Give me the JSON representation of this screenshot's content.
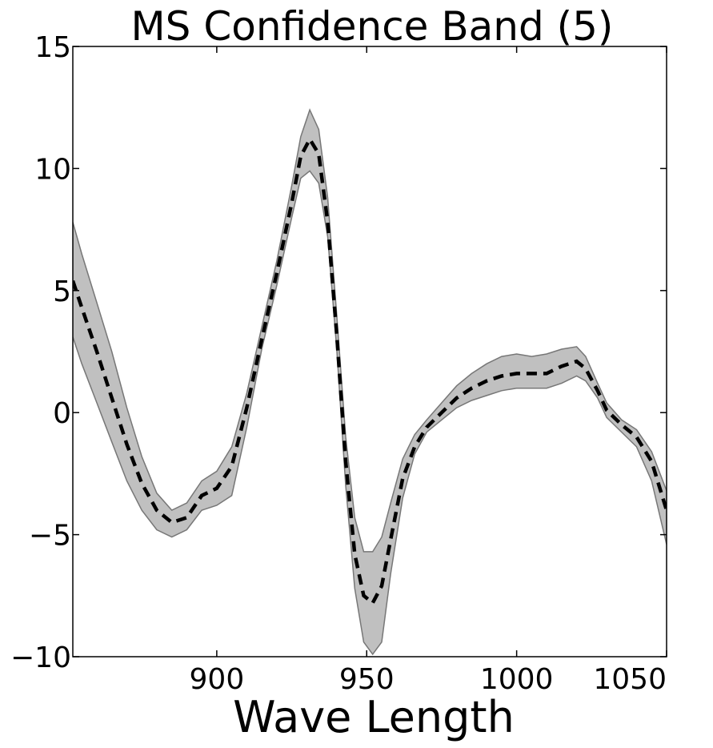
{
  "chart_data": {
    "type": "area",
    "title": "MS Confidence Band (5)",
    "xlabel": "Wave Length",
    "ylabel": "",
    "xlim": [
      852,
      1050
    ],
    "ylim": [
      -10,
      15
    ],
    "grid": false,
    "legend": "none",
    "xticks": [
      {
        "value": 900,
        "label": "900"
      },
      {
        "value": 950,
        "label": "950"
      },
      {
        "value": 1000,
        "label": "1000"
      },
      {
        "value": 1050,
        "label": "1050"
      }
    ],
    "yticks": [
      {
        "value": 15,
        "label": "15"
      },
      {
        "value": 10,
        "label": "10"
      },
      {
        "value": 5,
        "label": "5"
      },
      {
        "value": 0,
        "label": "0"
      },
      {
        "value": -5,
        "label": "−5"
      },
      {
        "value": -10,
        "label": "−10"
      }
    ],
    "colors": {
      "band_fill": "#c0c0c0",
      "band_edge": "#777777",
      "mean_line": "#000000"
    },
    "series": [
      {
        "role": "upper-band",
        "x": [
          852,
          855,
          860,
          865,
          870,
          875,
          880,
          885,
          890,
          895,
          900,
          905,
          910,
          915,
          920,
          925,
          928,
          931,
          934,
          937,
          940,
          943,
          946,
          949,
          952,
          955,
          958,
          962,
          966,
          970,
          975,
          980,
          985,
          990,
          995,
          1000,
          1005,
          1010,
          1015,
          1020,
          1023,
          1027,
          1030,
          1035,
          1040,
          1045,
          1050
        ],
        "y": [
          7.8,
          6.5,
          4.5,
          2.5,
          0.2,
          -1.8,
          -3.3,
          -4.0,
          -3.7,
          -2.8,
          -2.4,
          -1.4,
          0.8,
          3.5,
          6.2,
          9.3,
          11.3,
          12.4,
          11.6,
          8.8,
          4.0,
          -1.0,
          -4.3,
          -5.7,
          -5.7,
          -5.1,
          -3.7,
          -1.9,
          -0.9,
          -0.3,
          0.4,
          1.1,
          1.6,
          2.0,
          2.3,
          2.4,
          2.3,
          2.4,
          2.6,
          2.7,
          2.3,
          1.2,
          0.4,
          -0.3,
          -0.7,
          -1.6,
          -3.2
        ]
      },
      {
        "role": "mean",
        "x": [
          852,
          855,
          860,
          865,
          870,
          875,
          880,
          885,
          890,
          895,
          900,
          905,
          910,
          915,
          920,
          925,
          928,
          931,
          934,
          937,
          940,
          943,
          946,
          949,
          952,
          955,
          958,
          962,
          966,
          970,
          975,
          980,
          985,
          990,
          995,
          1000,
          1005,
          1010,
          1015,
          1020,
          1023,
          1027,
          1030,
          1035,
          1040,
          1045,
          1050
        ],
        "y": [
          5.4,
          4.3,
          2.5,
          0.6,
          -1.3,
          -2.9,
          -4.0,
          -4.5,
          -4.3,
          -3.4,
          -3.1,
          -2.2,
          0.2,
          3.0,
          5.7,
          8.6,
          10.5,
          11.2,
          10.6,
          7.8,
          3.2,
          -2.0,
          -5.8,
          -7.5,
          -7.8,
          -7.1,
          -5.2,
          -2.7,
          -1.4,
          -0.6,
          0.0,
          0.6,
          1.0,
          1.3,
          1.5,
          1.6,
          1.6,
          1.6,
          1.9,
          2.1,
          1.8,
          0.9,
          0.1,
          -0.5,
          -1.0,
          -2.0,
          -4.0
        ]
      },
      {
        "role": "lower-band",
        "x": [
          852,
          855,
          860,
          865,
          870,
          875,
          880,
          885,
          890,
          895,
          900,
          905,
          910,
          915,
          920,
          925,
          928,
          931,
          934,
          937,
          940,
          943,
          946,
          949,
          952,
          955,
          958,
          962,
          966,
          970,
          975,
          980,
          985,
          990,
          995,
          1000,
          1005,
          1010,
          1015,
          1020,
          1023,
          1027,
          1030,
          1035,
          1040,
          1045,
          1050
        ],
        "y": [
          3.1,
          2.0,
          0.4,
          -1.2,
          -2.8,
          -4.0,
          -4.8,
          -5.1,
          -4.8,
          -4.0,
          -3.8,
          -3.4,
          -0.6,
          2.6,
          5.2,
          8.0,
          9.6,
          9.9,
          9.4,
          7.2,
          2.6,
          -3.0,
          -7.2,
          -9.4,
          -9.9,
          -9.4,
          -6.6,
          -3.5,
          -1.7,
          -0.8,
          -0.3,
          0.2,
          0.5,
          0.7,
          0.9,
          1.0,
          1.0,
          1.0,
          1.2,
          1.5,
          1.3,
          0.6,
          -0.2,
          -0.8,
          -1.4,
          -2.8,
          -5.4
        ]
      }
    ]
  }
}
